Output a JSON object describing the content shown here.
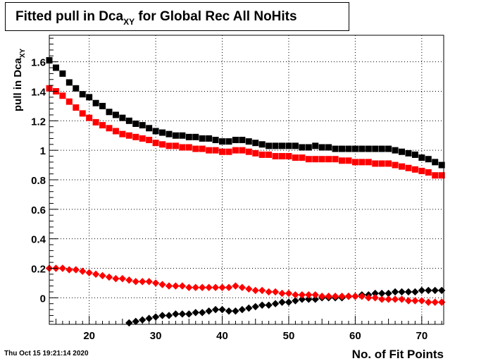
{
  "chart_data": {
    "type": "scatter",
    "title": "Fitted pull in Dca",
    "title_sub": "XY",
    "title_suffix": " for Global Rec All NoHits",
    "xlabel": "No. of Fit Points",
    "ylabel": "pull in Dca",
    "ylabel_sub": "XY",
    "xlim": [
      14,
      73.3
    ],
    "ylim": [
      -0.18,
      1.78
    ],
    "xticks": [
      20,
      30,
      40,
      50,
      60,
      70
    ],
    "yticks": [
      0,
      0.2,
      0.4,
      0.6,
      0.8,
      1,
      1.2,
      1.4,
      1.6
    ],
    "ytick_labels": [
      "0",
      "0.2",
      "0.4",
      "0.6",
      "0.8",
      "1",
      "1.2",
      "1.4",
      "1.6"
    ],
    "grid": true,
    "colors": {
      "black": "#000000",
      "red": "#ff0000"
    },
    "x": [
      14,
      15,
      16,
      17,
      18,
      19,
      20,
      21,
      22,
      23,
      24,
      25,
      26,
      27,
      28,
      29,
      30,
      31,
      32,
      33,
      34,
      35,
      36,
      37,
      38,
      39,
      40,
      41,
      42,
      43,
      44,
      45,
      46,
      47,
      48,
      49,
      50,
      51,
      52,
      53,
      54,
      55,
      56,
      57,
      58,
      59,
      60,
      61,
      62,
      63,
      64,
      65,
      66,
      67,
      68,
      69,
      70,
      71,
      72,
      73
    ],
    "series": [
      {
        "marker": "square",
        "color": "#000000",
        "values": [
          1.61,
          1.56,
          1.52,
          1.46,
          1.42,
          1.38,
          1.36,
          1.32,
          1.3,
          1.26,
          1.24,
          1.22,
          1.2,
          1.18,
          1.17,
          1.15,
          1.13,
          1.12,
          1.11,
          1.1,
          1.1,
          1.09,
          1.09,
          1.08,
          1.08,
          1.07,
          1.06,
          1.06,
          1.07,
          1.07,
          1.06,
          1.05,
          1.04,
          1.03,
          1.03,
          1.03,
          1.03,
          1.03,
          1.02,
          1.02,
          1.03,
          1.02,
          1.02,
          1.01,
          1.01,
          1.01,
          1.01,
          1.01,
          1.01,
          1.01,
          1.01,
          1.01,
          1.0,
          0.99,
          0.98,
          0.97,
          0.95,
          0.94,
          0.92,
          0.9
        ]
      },
      {
        "marker": "square",
        "color": "#ff0000",
        "values": [
          1.42,
          1.4,
          1.37,
          1.33,
          1.29,
          1.25,
          1.22,
          1.19,
          1.17,
          1.15,
          1.13,
          1.11,
          1.1,
          1.09,
          1.08,
          1.07,
          1.05,
          1.04,
          1.03,
          1.03,
          1.02,
          1.02,
          1.01,
          1.01,
          1.0,
          1.0,
          0.99,
          0.99,
          1.0,
          1.0,
          0.99,
          0.98,
          0.97,
          0.97,
          0.96,
          0.96,
          0.96,
          0.95,
          0.95,
          0.94,
          0.94,
          0.94,
          0.94,
          0.94,
          0.93,
          0.93,
          0.92,
          0.92,
          0.92,
          0.91,
          0.91,
          0.91,
          0.9,
          0.89,
          0.88,
          0.87,
          0.86,
          0.85,
          0.83,
          0.83
        ]
      },
      {
        "marker": "diamond",
        "color": "#000000",
        "values": [
          null,
          null,
          null,
          null,
          null,
          null,
          null,
          null,
          null,
          null,
          null,
          null,
          -0.17,
          -0.16,
          -0.15,
          -0.14,
          -0.13,
          -0.12,
          -0.12,
          -0.11,
          -0.11,
          -0.11,
          -0.1,
          -0.1,
          -0.09,
          -0.08,
          -0.08,
          -0.09,
          -0.09,
          -0.08,
          -0.07,
          -0.06,
          -0.05,
          -0.05,
          -0.04,
          -0.03,
          -0.03,
          -0.02,
          -0.01,
          -0.01,
          -0.01,
          0.0,
          0.0,
          0.0,
          0.0,
          0.01,
          0.01,
          0.02,
          0.02,
          0.03,
          0.03,
          0.03,
          0.04,
          0.04,
          0.04,
          0.04,
          0.05,
          0.05,
          0.05,
          0.05
        ]
      },
      {
        "marker": "diamond",
        "color": "#ff0000",
        "values": [
          0.2,
          0.2,
          0.2,
          0.19,
          0.19,
          0.18,
          0.17,
          0.16,
          0.15,
          0.14,
          0.13,
          0.13,
          0.12,
          0.11,
          0.11,
          0.11,
          0.1,
          0.09,
          0.08,
          0.08,
          0.08,
          0.07,
          0.07,
          0.07,
          0.07,
          0.07,
          0.07,
          0.07,
          0.08,
          0.07,
          0.06,
          0.05,
          0.05,
          0.04,
          0.04,
          0.03,
          0.03,
          0.02,
          0.02,
          0.02,
          0.02,
          0.01,
          0.01,
          0.01,
          0.01,
          0.01,
          0.01,
          0.01,
          0.0,
          0.0,
          -0.01,
          -0.01,
          -0.01,
          -0.01,
          -0.02,
          -0.02,
          -0.02,
          -0.03,
          -0.03,
          -0.03
        ]
      }
    ]
  },
  "footer": {
    "timestamp": "Thu Oct 15 19:21:14 2020"
  }
}
